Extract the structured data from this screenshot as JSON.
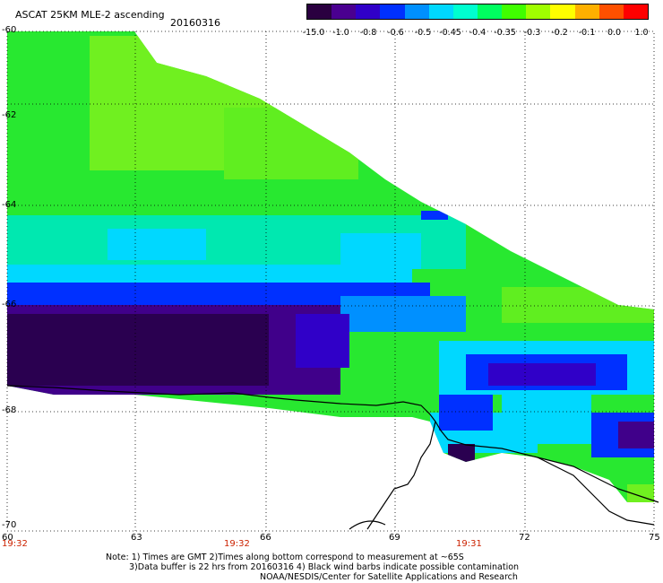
{
  "title": "ASCAT 25KM MLE-2 ascending",
  "date": "20160316",
  "colorbar": {
    "labels": [
      "-15.0",
      "-1.0",
      "-0.8",
      "-0.6",
      "-0.5",
      "-0.45",
      "-0.4",
      "-0.35",
      "-0.3",
      "-0.2",
      "-0.1",
      "0.0",
      "1.0"
    ],
    "colors": [
      "#2a0040",
      "#4a0090",
      "#3000c8",
      "#0030ff",
      "#0090ff",
      "#00d8ff",
      "#00ffd0",
      "#00ff60",
      "#40ff00",
      "#a0ff00",
      "#ffff00",
      "#ffb000",
      "#ff5000",
      "#ff0000"
    ]
  },
  "map": {
    "lat_labels": [
      "-60",
      "-62",
      "-64",
      "-66",
      "-68",
      "-70"
    ],
    "lon_labels": [
      "60",
      "63",
      "66",
      "69",
      "72",
      "75"
    ],
    "time_labels": [
      "19:32",
      "19:32",
      "19:31"
    ]
  },
  "notes": {
    "line1": "Note: 1) Times are GMT 2)Times along bottom correspond to measurement at ~65S",
    "line2": "3)Data buffer is 22 hrs from 20160316 4) Black wind barbs indicate possible contamination",
    "line3": "NOAA/NESDIS/Center for Satellite Applications and Research"
  }
}
